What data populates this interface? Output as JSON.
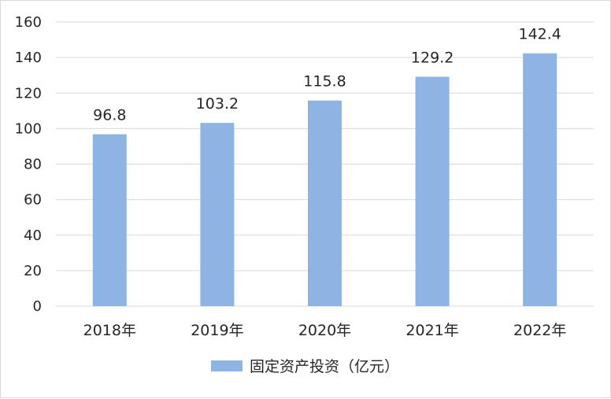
{
  "chart_data": {
    "type": "bar",
    "categories": [
      "2018年",
      "2019年",
      "2020年",
      "2021年",
      "2022年"
    ],
    "series": [
      {
        "name": "固定资产投资（亿元）",
        "values": [
          96.8,
          103.2,
          115.8,
          129.2,
          142.4
        ],
        "color": "#8eb4e3"
      }
    ],
    "data_labels": [
      "96.8",
      "103.2",
      "115.8",
      "129.2",
      "142.4"
    ],
    "title": "",
    "xlabel": "",
    "ylabel": "",
    "ylim": [
      0,
      160
    ],
    "yticks": [
      0,
      20,
      40,
      60,
      80,
      100,
      120,
      140,
      160
    ],
    "grid": true,
    "gridline_color": "#d9d9d9",
    "legend_position": "bottom"
  }
}
